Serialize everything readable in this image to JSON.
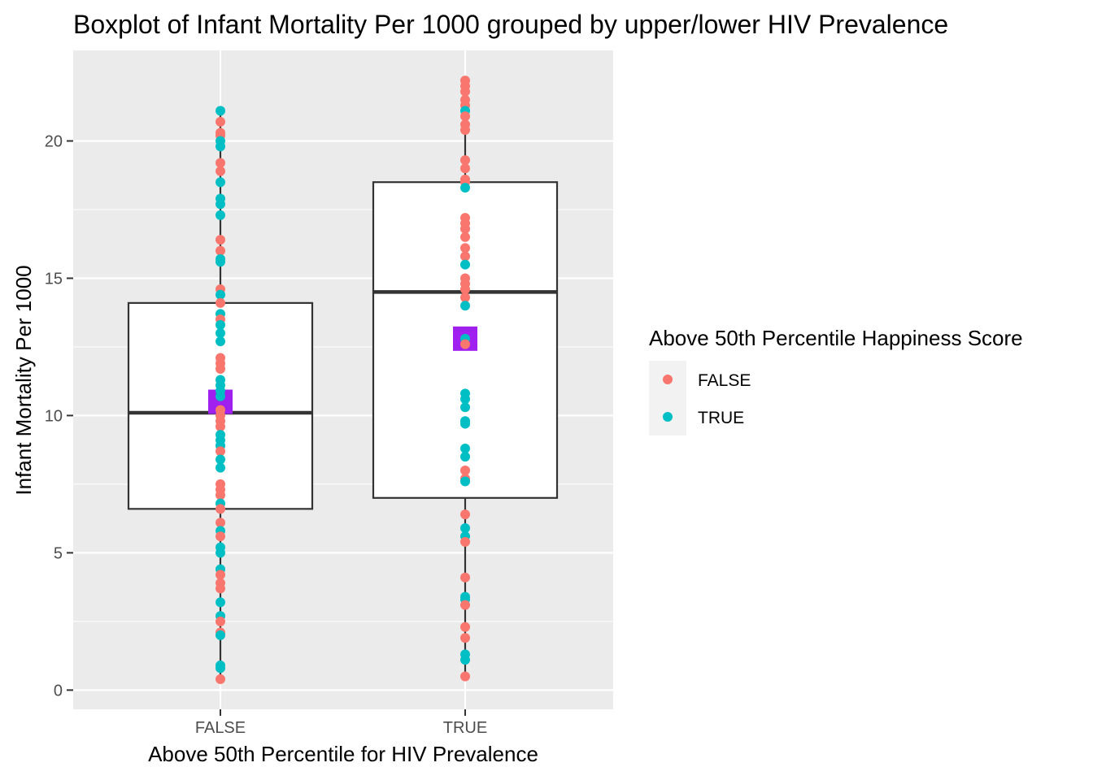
{
  "chart_data": {
    "type": "boxplot",
    "title": "Boxplot of Infant Mortality Per 1000 grouped by upper/lower HIV Prevalence",
    "xlabel": "Above 50th Percentile for HIV Prevalence",
    "ylabel": "Infant Mortality Per 1000",
    "categories": [
      "FALSE",
      "TRUE"
    ],
    "ylim": [
      -0.7,
      23.3
    ],
    "yticks": [
      0,
      5,
      10,
      15,
      20
    ],
    "grid": true,
    "background": "#ebebeb",
    "boxes": [
      {
        "category": "FALSE",
        "lower_whisker": 0.4,
        "q1": 6.6,
        "median": 10.1,
        "q3": 14.1,
        "upper_whisker": 21.1,
        "mean": 10.5
      },
      {
        "category": "TRUE",
        "lower_whisker": 0.5,
        "q1": 7.0,
        "median": 14.5,
        "q3": 18.5,
        "upper_whisker": 22.2,
        "mean": 12.8
      }
    ],
    "mean_marker_color": "#a020f0",
    "legend": {
      "title": "Above 50th Percentile Happiness Score",
      "placement": "right",
      "entries": [
        {
          "label": "FALSE",
          "color": "#f8766d"
        },
        {
          "label": "TRUE",
          "color": "#00bfc4"
        }
      ]
    },
    "points": [
      {
        "x": "FALSE",
        "y": 21.1,
        "happy": "TRUE"
      },
      {
        "x": "FALSE",
        "y": 20.7,
        "happy": "FALSE"
      },
      {
        "x": "FALSE",
        "y": 20.3,
        "happy": "FALSE"
      },
      {
        "x": "FALSE",
        "y": 20.2,
        "happy": "FALSE"
      },
      {
        "x": "FALSE",
        "y": 20.0,
        "happy": "TRUE"
      },
      {
        "x": "FALSE",
        "y": 19.8,
        "happy": "TRUE"
      },
      {
        "x": "FALSE",
        "y": 19.2,
        "happy": "FALSE"
      },
      {
        "x": "FALSE",
        "y": 18.9,
        "happy": "FALSE"
      },
      {
        "x": "FALSE",
        "y": 18.5,
        "happy": "TRUE"
      },
      {
        "x": "FALSE",
        "y": 17.9,
        "happy": "TRUE"
      },
      {
        "x": "FALSE",
        "y": 17.7,
        "happy": "TRUE"
      },
      {
        "x": "FALSE",
        "y": 17.3,
        "happy": "TRUE"
      },
      {
        "x": "FALSE",
        "y": 16.4,
        "happy": "FALSE"
      },
      {
        "x": "FALSE",
        "y": 16.0,
        "happy": "FALSE"
      },
      {
        "x": "FALSE",
        "y": 15.7,
        "happy": "TRUE"
      },
      {
        "x": "FALSE",
        "y": 15.6,
        "happy": "TRUE"
      },
      {
        "x": "FALSE",
        "y": 14.6,
        "happy": "FALSE"
      },
      {
        "x": "FALSE",
        "y": 14.4,
        "happy": "TRUE"
      },
      {
        "x": "FALSE",
        "y": 14.1,
        "happy": "FALSE"
      },
      {
        "x": "FALSE",
        "y": 13.7,
        "happy": "TRUE"
      },
      {
        "x": "FALSE",
        "y": 13.5,
        "happy": "FALSE"
      },
      {
        "x": "FALSE",
        "y": 13.3,
        "happy": "TRUE"
      },
      {
        "x": "FALSE",
        "y": 13.0,
        "happy": "TRUE"
      },
      {
        "x": "FALSE",
        "y": 12.7,
        "happy": "TRUE"
      },
      {
        "x": "FALSE",
        "y": 12.1,
        "happy": "FALSE"
      },
      {
        "x": "FALSE",
        "y": 11.9,
        "happy": "FALSE"
      },
      {
        "x": "FALSE",
        "y": 11.7,
        "happy": "FALSE"
      },
      {
        "x": "FALSE",
        "y": 11.3,
        "happy": "TRUE"
      },
      {
        "x": "FALSE",
        "y": 11.1,
        "happy": "TRUE"
      },
      {
        "x": "FALSE",
        "y": 10.9,
        "happy": "TRUE"
      },
      {
        "x": "FALSE",
        "y": 10.7,
        "happy": "TRUE"
      },
      {
        "x": "FALSE",
        "y": 10.2,
        "happy": "FALSE"
      },
      {
        "x": "FALSE",
        "y": 10.0,
        "happy": "FALSE"
      },
      {
        "x": "FALSE",
        "y": 9.8,
        "happy": "FALSE"
      },
      {
        "x": "FALSE",
        "y": 9.6,
        "happy": "FALSE"
      },
      {
        "x": "FALSE",
        "y": 9.3,
        "happy": "TRUE"
      },
      {
        "x": "FALSE",
        "y": 9.1,
        "happy": "TRUE"
      },
      {
        "x": "FALSE",
        "y": 8.9,
        "happy": "TRUE"
      },
      {
        "x": "FALSE",
        "y": 8.7,
        "happy": "FALSE"
      },
      {
        "x": "FALSE",
        "y": 8.4,
        "happy": "TRUE"
      },
      {
        "x": "FALSE",
        "y": 8.1,
        "happy": "TRUE"
      },
      {
        "x": "FALSE",
        "y": 7.5,
        "happy": "FALSE"
      },
      {
        "x": "FALSE",
        "y": 7.3,
        "happy": "FALSE"
      },
      {
        "x": "FALSE",
        "y": 7.1,
        "happy": "FALSE"
      },
      {
        "x": "FALSE",
        "y": 6.8,
        "happy": "TRUE"
      },
      {
        "x": "FALSE",
        "y": 6.6,
        "happy": "FALSE"
      },
      {
        "x": "FALSE",
        "y": 6.1,
        "happy": "FALSE"
      },
      {
        "x": "FALSE",
        "y": 5.8,
        "happy": "TRUE"
      },
      {
        "x": "FALSE",
        "y": 5.6,
        "happy": "FALSE"
      },
      {
        "x": "FALSE",
        "y": 5.2,
        "happy": "TRUE"
      },
      {
        "x": "FALSE",
        "y": 5.0,
        "happy": "TRUE"
      },
      {
        "x": "FALSE",
        "y": 4.4,
        "happy": "TRUE"
      },
      {
        "x": "FALSE",
        "y": 4.2,
        "happy": "FALSE"
      },
      {
        "x": "FALSE",
        "y": 3.9,
        "happy": "FALSE"
      },
      {
        "x": "FALSE",
        "y": 3.7,
        "happy": "FALSE"
      },
      {
        "x": "FALSE",
        "y": 3.2,
        "happy": "TRUE"
      },
      {
        "x": "FALSE",
        "y": 2.7,
        "happy": "TRUE"
      },
      {
        "x": "FALSE",
        "y": 2.5,
        "happy": "FALSE"
      },
      {
        "x": "FALSE",
        "y": 2.1,
        "happy": "FALSE"
      },
      {
        "x": "FALSE",
        "y": 2.0,
        "happy": "TRUE"
      },
      {
        "x": "FALSE",
        "y": 0.9,
        "happy": "TRUE"
      },
      {
        "x": "FALSE",
        "y": 0.8,
        "happy": "TRUE"
      },
      {
        "x": "FALSE",
        "y": 0.4,
        "happy": "FALSE"
      },
      {
        "x": "TRUE",
        "y": 22.2,
        "happy": "FALSE"
      },
      {
        "x": "TRUE",
        "y": 22.0,
        "happy": "FALSE"
      },
      {
        "x": "TRUE",
        "y": 21.8,
        "happy": "FALSE"
      },
      {
        "x": "TRUE",
        "y": 21.5,
        "happy": "FALSE"
      },
      {
        "x": "TRUE",
        "y": 21.3,
        "happy": "FALSE"
      },
      {
        "x": "TRUE",
        "y": 21.1,
        "happy": "TRUE"
      },
      {
        "x": "TRUE",
        "y": 20.9,
        "happy": "FALSE"
      },
      {
        "x": "TRUE",
        "y": 20.6,
        "happy": "FALSE"
      },
      {
        "x": "TRUE",
        "y": 20.4,
        "happy": "FALSE"
      },
      {
        "x": "TRUE",
        "y": 19.3,
        "happy": "FALSE"
      },
      {
        "x": "TRUE",
        "y": 19.0,
        "happy": "FALSE"
      },
      {
        "x": "TRUE",
        "y": 18.6,
        "happy": "FALSE"
      },
      {
        "x": "TRUE",
        "y": 18.5,
        "happy": "FALSE"
      },
      {
        "x": "TRUE",
        "y": 18.3,
        "happy": "TRUE"
      },
      {
        "x": "TRUE",
        "y": 17.2,
        "happy": "FALSE"
      },
      {
        "x": "TRUE",
        "y": 17.0,
        "happy": "FALSE"
      },
      {
        "x": "TRUE",
        "y": 16.8,
        "happy": "FALSE"
      },
      {
        "x": "TRUE",
        "y": 16.5,
        "happy": "FALSE"
      },
      {
        "x": "TRUE",
        "y": 16.1,
        "happy": "FALSE"
      },
      {
        "x": "TRUE",
        "y": 15.8,
        "happy": "FALSE"
      },
      {
        "x": "TRUE",
        "y": 15.5,
        "happy": "TRUE"
      },
      {
        "x": "TRUE",
        "y": 15.0,
        "happy": "FALSE"
      },
      {
        "x": "TRUE",
        "y": 14.8,
        "happy": "FALSE"
      },
      {
        "x": "TRUE",
        "y": 14.6,
        "happy": "FALSE"
      },
      {
        "x": "TRUE",
        "y": 14.3,
        "happy": "FALSE"
      },
      {
        "x": "TRUE",
        "y": 14.0,
        "happy": "TRUE"
      },
      {
        "x": "TRUE",
        "y": 12.8,
        "happy": "TRUE"
      },
      {
        "x": "TRUE",
        "y": 12.6,
        "happy": "FALSE"
      },
      {
        "x": "TRUE",
        "y": 10.8,
        "happy": "TRUE"
      },
      {
        "x": "TRUE",
        "y": 10.6,
        "happy": "TRUE"
      },
      {
        "x": "TRUE",
        "y": 10.3,
        "happy": "TRUE"
      },
      {
        "x": "TRUE",
        "y": 9.8,
        "happy": "TRUE"
      },
      {
        "x": "TRUE",
        "y": 9.7,
        "happy": "TRUE"
      },
      {
        "x": "TRUE",
        "y": 8.8,
        "happy": "TRUE"
      },
      {
        "x": "TRUE",
        "y": 8.5,
        "happy": "TRUE"
      },
      {
        "x": "TRUE",
        "y": 8.0,
        "happy": "FALSE"
      },
      {
        "x": "TRUE",
        "y": 7.7,
        "happy": "FALSE"
      },
      {
        "x": "TRUE",
        "y": 7.6,
        "happy": "TRUE"
      },
      {
        "x": "TRUE",
        "y": 6.4,
        "happy": "FALSE"
      },
      {
        "x": "TRUE",
        "y": 5.9,
        "happy": "TRUE"
      },
      {
        "x": "TRUE",
        "y": 5.6,
        "happy": "TRUE"
      },
      {
        "x": "TRUE",
        "y": 5.4,
        "happy": "FALSE"
      },
      {
        "x": "TRUE",
        "y": 4.1,
        "happy": "FALSE"
      },
      {
        "x": "TRUE",
        "y": 3.4,
        "happy": "TRUE"
      },
      {
        "x": "TRUE",
        "y": 3.3,
        "happy": "TRUE"
      },
      {
        "x": "TRUE",
        "y": 3.1,
        "happy": "FALSE"
      },
      {
        "x": "TRUE",
        "y": 2.3,
        "happy": "FALSE"
      },
      {
        "x": "TRUE",
        "y": 1.9,
        "happy": "FALSE"
      },
      {
        "x": "TRUE",
        "y": 1.3,
        "happy": "TRUE"
      },
      {
        "x": "TRUE",
        "y": 1.1,
        "happy": "TRUE"
      },
      {
        "x": "TRUE",
        "y": 0.5,
        "happy": "FALSE"
      }
    ]
  }
}
